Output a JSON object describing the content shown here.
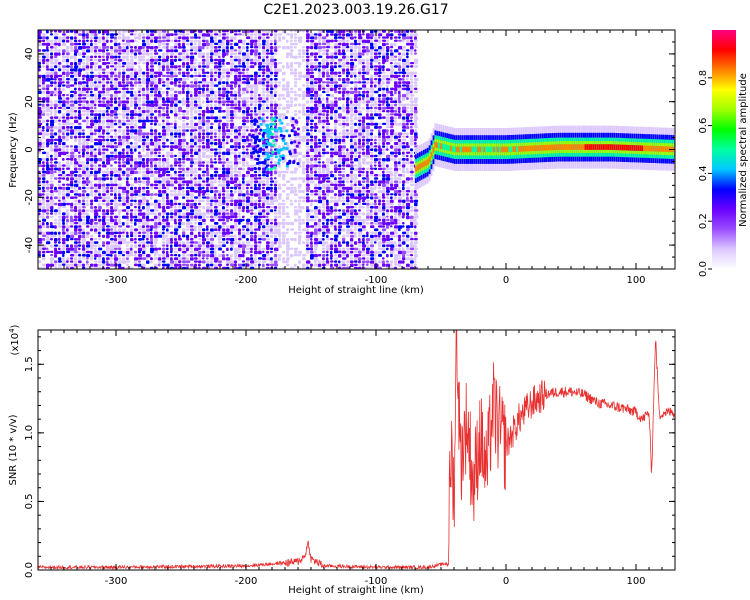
{
  "chart_data": [
    {
      "type": "heatmap",
      "title": "C2E1.2023.003.19.26.G17",
      "xlabel": "Height of straight line (km)",
      "ylabel": "Frequency (Hz)",
      "xlim": [
        -360,
        130
      ],
      "ylim": [
        -50,
        50
      ],
      "xticks": [
        -300,
        -200,
        -100,
        0,
        100
      ],
      "yticks": [
        -40,
        -20,
        0,
        20,
        40
      ],
      "colorbar": {
        "label": "Normalized spectral amplitude",
        "range": [
          0,
          1
        ],
        "ticks": [
          "0.0",
          "0.2",
          "0.4",
          "0.6",
          "0.8"
        ],
        "colors": [
          "#ffffff",
          "#dcc8ff",
          "#9a4cff",
          "#6a00ff",
          "#0000ff",
          "#00c8ff",
          "#00ffa0",
          "#00ff00",
          "#a0ff00",
          "#ffff00",
          "#ff8000",
          "#ff0000",
          "#ff0080"
        ]
      },
      "regions": [
        {
          "x": [
            -360,
            -70
          ],
          "freq": [
            -50,
            50
          ],
          "pattern": "noise",
          "amplitude": 0.15
        },
        {
          "x": [
            -170,
            -163
          ],
          "freq": [
            -50,
            50
          ],
          "pattern": "gap",
          "amplitude": 0.05
        },
        {
          "x": [
            -200,
            -160
          ],
          "freq": [
            -10,
            15
          ],
          "pattern": "blob",
          "amplitude": 0.3
        },
        {
          "x": [
            -70,
            130
          ],
          "freq": [
            -5,
            3
          ],
          "pattern": "ridge",
          "amplitude": 0.95
        }
      ],
      "ridge_center": [
        {
          "x": -70,
          "freq": -8
        },
        {
          "x": -60,
          "freq": -5
        },
        {
          "x": -55,
          "freq": 2
        },
        {
          "x": -40,
          "freq": 0
        },
        {
          "x": -20,
          "freq": 0
        },
        {
          "x": 0,
          "freq": 0
        },
        {
          "x": 40,
          "freq": 1
        },
        {
          "x": 80,
          "freq": 1
        },
        {
          "x": 130,
          "freq": 0
        }
      ]
    },
    {
      "type": "line",
      "xlabel": "Height of straight line (km)",
      "ylabel": "SNR (10 * v/v)",
      "yscale_label": "(x10",
      "yscale_exp": "4",
      "yscale_close": ")",
      "xlim": [
        -360,
        130
      ],
      "ylim": [
        0,
        1.75
      ],
      "xticks": [
        -300,
        -200,
        -100,
        0,
        100
      ],
      "yticks": [
        "0.0",
        "0.5",
        "1.0",
        "1.5"
      ],
      "color": "#e83030",
      "series": [
        {
          "x": [
            -360,
            -300,
            -200,
            -160,
            -155,
            -152,
            -150,
            -140,
            -100,
            -60,
            -45,
            -42,
            -40,
            -38,
            -35,
            -30,
            -25,
            -20,
            -15,
            -10,
            -5,
            0,
            10,
            20,
            30,
            40,
            50,
            60,
            70,
            80,
            90,
            100,
            105,
            110,
            112,
            115,
            118,
            120,
            125,
            130
          ],
          "y": [
            0.02,
            0.02,
            0.03,
            0.06,
            0.1,
            0.2,
            0.08,
            0.03,
            0.02,
            0.02,
            0.05,
            0.9,
            0.5,
            1.75,
            0.8,
            1.1,
            0.6,
            1.0,
            0.7,
            1.2,
            1.0,
            0.9,
            1.1,
            1.22,
            1.28,
            1.3,
            1.3,
            1.28,
            1.22,
            1.2,
            1.18,
            1.15,
            1.1,
            1.15,
            0.7,
            1.7,
            1.12,
            1.15,
            1.15,
            1.15
          ]
        }
      ]
    }
  ]
}
